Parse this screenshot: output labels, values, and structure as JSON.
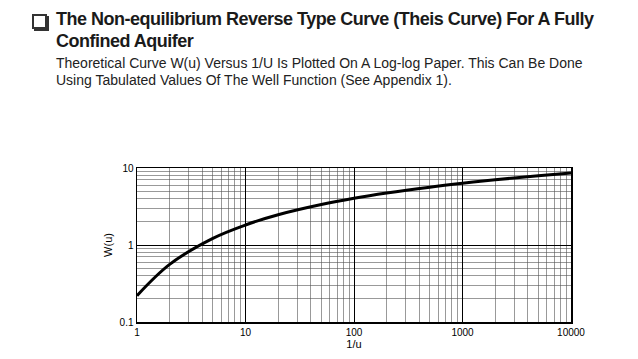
{
  "chart_data": {
    "type": "line",
    "title": "The Non-equilibrium Reverse Type Curve (Theis Curve) For A Fully Confined Aquifer",
    "subtitle": "Theoretical Curve W(u) Versus 1/U Is Plotted On A Log-log Paper. This Can Be Done Using Tabulated Values Of The Well Function (See Appendix 1).",
    "x_label": "1/u",
    "y_label": "W(u)",
    "x": [
      1,
      2,
      5,
      10,
      20,
      50,
      100,
      200,
      500,
      1000,
      2000,
      5000,
      10000
    ],
    "values": [
      0.22,
      0.56,
      1.22,
      1.82,
      2.47,
      3.35,
      4.04,
      4.73,
      5.64,
      6.33,
      7.02,
      7.94,
      8.63
    ],
    "color": "#000000",
    "log": true,
    "grid": true,
    "xlim": [
      1,
      10000
    ],
    "ylim": [
      0.1,
      10
    ],
    "xticks": [
      1,
      10,
      100,
      1000,
      10000
    ],
    "yticks": [
      0.1,
      1,
      10
    ]
  }
}
